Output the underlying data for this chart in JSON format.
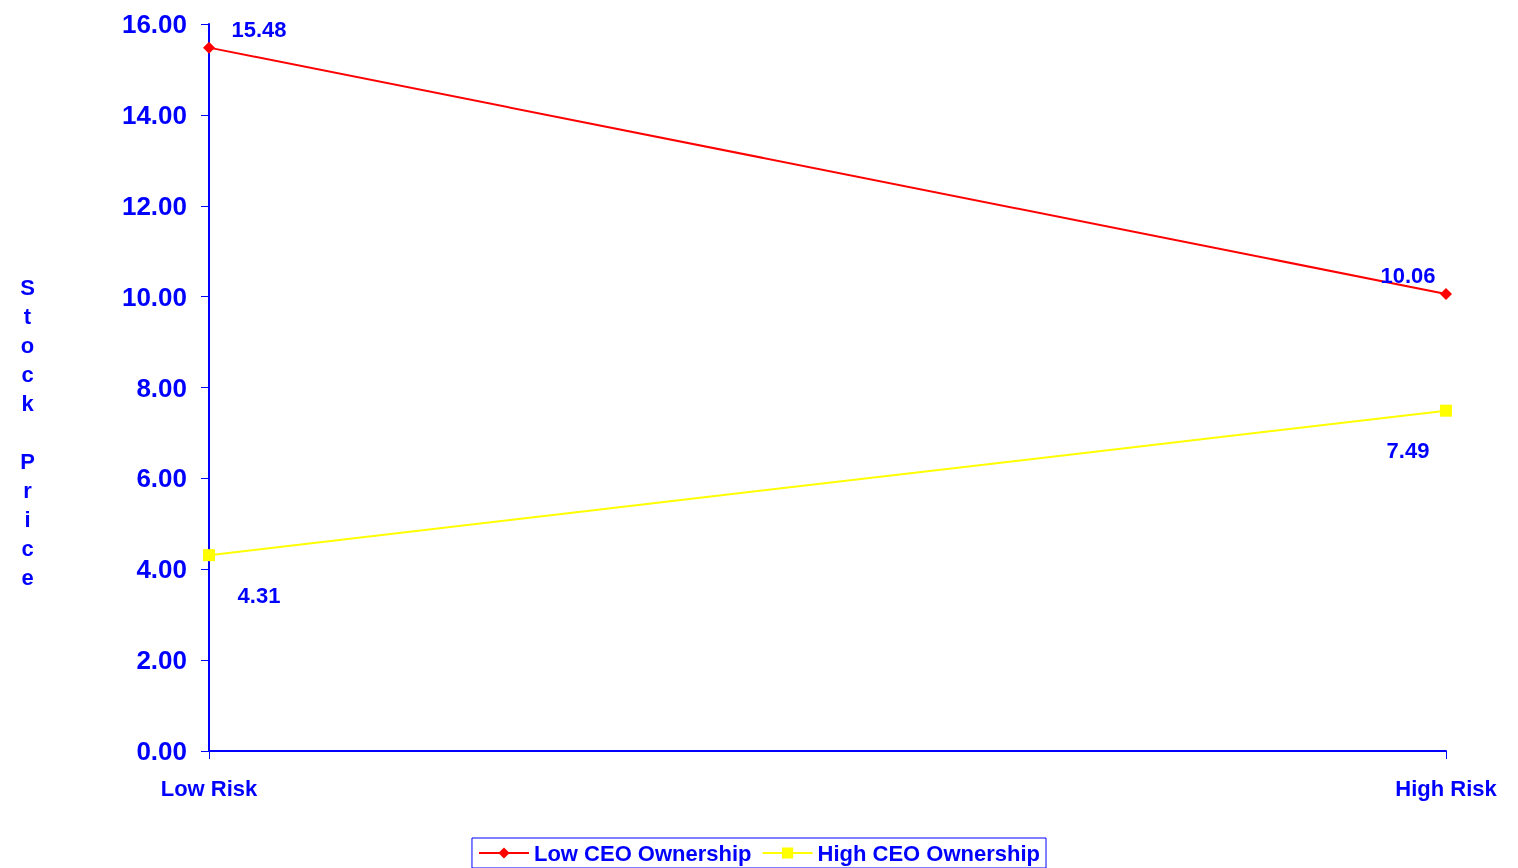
{
  "chart_data": {
    "type": "line",
    "ylabel": "Stock Price",
    "categories": [
      "Low Risk",
      "High Risk"
    ],
    "series": [
      {
        "name": "Low CEO Ownership",
        "color": "#ff0000",
        "marker": "diamond",
        "values": [
          15.48,
          10.06
        ]
      },
      {
        "name": "High CEO Ownership",
        "color": "#ffff00",
        "marker": "square",
        "values": [
          4.31,
          7.49
        ]
      }
    ],
    "ylim": [
      0,
      16
    ],
    "yticks": [
      {
        "value": 0,
        "label": "0.00"
      },
      {
        "value": 2,
        "label": "2.00"
      },
      {
        "value": 4,
        "label": "4.00"
      },
      {
        "value": 6,
        "label": "6.00"
      },
      {
        "value": 8,
        "label": "8.00"
      },
      {
        "value": 10,
        "label": "10.00"
      },
      {
        "value": 12,
        "label": "12.00"
      },
      {
        "value": 14,
        "label": "14.00"
      },
      {
        "value": 16,
        "label": "16.00"
      }
    ],
    "data_labels": true,
    "grid": false,
    "legend": "bottom",
    "line_style": "solid"
  }
}
